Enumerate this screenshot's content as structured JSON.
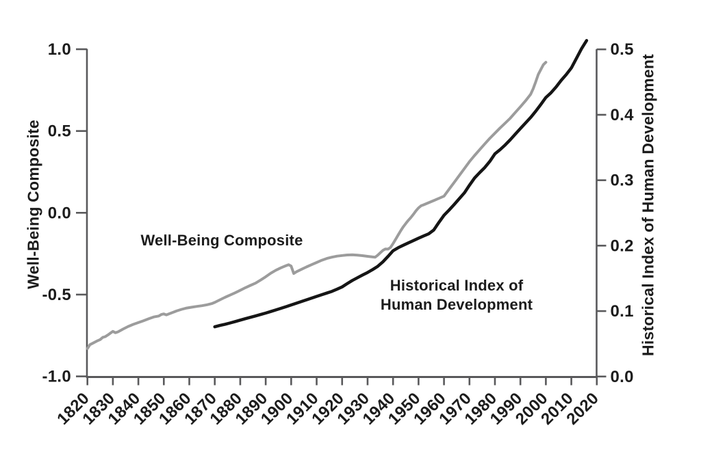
{
  "chart_data": {
    "type": "line",
    "title": "",
    "grid": false,
    "legend": "inline-annotations",
    "x_axis": {
      "min": 1820,
      "max": 2020,
      "tick_step": 10,
      "ticks": [
        {
          "value": 1820,
          "label": "1820"
        },
        {
          "value": 1830,
          "label": "1830"
        },
        {
          "value": 1840,
          "label": "1840"
        },
        {
          "value": 1850,
          "label": "1850"
        },
        {
          "value": 1860,
          "label": "1860"
        },
        {
          "value": 1870,
          "label": "1870"
        },
        {
          "value": 1880,
          "label": "1880"
        },
        {
          "value": 1890,
          "label": "1890"
        },
        {
          "value": 1900,
          "label": "1900"
        },
        {
          "value": 1910,
          "label": "1910"
        },
        {
          "value": 1920,
          "label": "1920"
        },
        {
          "value": 1930,
          "label": "1930"
        },
        {
          "value": 1940,
          "label": "1940"
        },
        {
          "value": 1950,
          "label": "1950"
        },
        {
          "value": 1960,
          "label": "1960"
        },
        {
          "value": 1970,
          "label": "1970"
        },
        {
          "value": 1980,
          "label": "1980"
        },
        {
          "value": 1990,
          "label": "1990"
        },
        {
          "value": 2000,
          "label": "2000"
        },
        {
          "value": 2010,
          "label": "2010"
        },
        {
          "value": 2020,
          "label": "2020"
        }
      ]
    },
    "left_axis": {
      "title": "Well-Being Composite",
      "min": -1.0,
      "max": 1.0,
      "ticks": [
        {
          "value": 1.0,
          "label": "1.0"
        },
        {
          "value": 0.5,
          "label": "0.5"
        },
        {
          "value": 0.0,
          "label": "0.0"
        },
        {
          "value": -0.5,
          "label": "-0.5"
        },
        {
          "value": -1.0,
          "label": "-1.0"
        }
      ]
    },
    "right_axis": {
      "title": "Historical Index of Human Development",
      "min": 0.0,
      "max": 0.5,
      "ticks": [
        {
          "value": 0.5,
          "label": "0.5"
        },
        {
          "value": 0.4,
          "label": "0.4"
        },
        {
          "value": 0.3,
          "label": "0.3"
        },
        {
          "value": 0.2,
          "label": "0.2"
        },
        {
          "value": 0.1,
          "label": "0.1"
        },
        {
          "value": 0.0,
          "label": "0.0"
        }
      ]
    },
    "series": [
      {
        "name": "Well-Being Composite",
        "axis": "left",
        "color": "#9c9c9c",
        "stroke_width": 4,
        "points": [
          [
            1820,
            -0.83
          ],
          [
            1821,
            -0.806
          ],
          [
            1822,
            -0.798
          ],
          [
            1824,
            -0.782
          ],
          [
            1825,
            -0.775
          ],
          [
            1826,
            -0.762
          ],
          [
            1827,
            -0.757
          ],
          [
            1828,
            -0.747
          ],
          [
            1829,
            -0.736
          ],
          [
            1830,
            -0.725
          ],
          [
            1831,
            -0.733
          ],
          [
            1832,
            -0.728
          ],
          [
            1834,
            -0.711
          ],
          [
            1836,
            -0.695
          ],
          [
            1838,
            -0.682
          ],
          [
            1840,
            -0.671
          ],
          [
            1842,
            -0.66
          ],
          [
            1844,
            -0.648
          ],
          [
            1846,
            -0.637
          ],
          [
            1848,
            -0.631
          ],
          [
            1849,
            -0.622
          ],
          [
            1850,
            -0.618
          ],
          [
            1851,
            -0.624
          ],
          [
            1853,
            -0.612
          ],
          [
            1855,
            -0.6
          ],
          [
            1857,
            -0.59
          ],
          [
            1859,
            -0.582
          ],
          [
            1861,
            -0.577
          ],
          [
            1863,
            -0.572
          ],
          [
            1865,
            -0.568
          ],
          [
            1867,
            -0.562
          ],
          [
            1869,
            -0.554
          ],
          [
            1870,
            -0.548
          ],
          [
            1872,
            -0.532
          ],
          [
            1874,
            -0.517
          ],
          [
            1876,
            -0.503
          ],
          [
            1878,
            -0.489
          ],
          [
            1880,
            -0.474
          ],
          [
            1882,
            -0.458
          ],
          [
            1884,
            -0.444
          ],
          [
            1886,
            -0.43
          ],
          [
            1888,
            -0.411
          ],
          [
            1890,
            -0.391
          ],
          [
            1892,
            -0.369
          ],
          [
            1894,
            -0.351
          ],
          [
            1896,
            -0.336
          ],
          [
            1898,
            -0.323
          ],
          [
            1899,
            -0.317
          ],
          [
            1900,
            -0.326
          ],
          [
            1901,
            -0.371
          ],
          [
            1902,
            -0.361
          ],
          [
            1904,
            -0.346
          ],
          [
            1906,
            -0.331
          ],
          [
            1908,
            -0.317
          ],
          [
            1910,
            -0.304
          ],
          [
            1912,
            -0.29
          ],
          [
            1914,
            -0.279
          ],
          [
            1916,
            -0.271
          ],
          [
            1918,
            -0.265
          ],
          [
            1920,
            -0.261
          ],
          [
            1922,
            -0.258
          ],
          [
            1924,
            -0.257
          ],
          [
            1926,
            -0.259
          ],
          [
            1928,
            -0.262
          ],
          [
            1930,
            -0.266
          ],
          [
            1932,
            -0.27
          ],
          [
            1933,
            -0.271
          ],
          [
            1934,
            -0.259
          ],
          [
            1935,
            -0.244
          ],
          [
            1936,
            -0.23
          ],
          [
            1937,
            -0.221
          ],
          [
            1938,
            -0.222
          ],
          [
            1939,
            -0.212
          ],
          [
            1940,
            -0.188
          ],
          [
            1941,
            -0.162
          ],
          [
            1942,
            -0.136
          ],
          [
            1943,
            -0.11
          ],
          [
            1944,
            -0.086
          ],
          [
            1945,
            -0.065
          ],
          [
            1946,
            -0.046
          ],
          [
            1947,
            -0.029
          ],
          [
            1948,
            -0.009
          ],
          [
            1949,
            0.012
          ],
          [
            1950,
            0.03
          ],
          [
            1951,
            0.043
          ],
          [
            1952,
            0.049
          ],
          [
            1954,
            0.062
          ],
          [
            1956,
            0.075
          ],
          [
            1958,
            0.088
          ],
          [
            1960,
            0.102
          ],
          [
            1962,
            0.144
          ],
          [
            1964,
            0.186
          ],
          [
            1966,
            0.228
          ],
          [
            1968,
            0.27
          ],
          [
            1970,
            0.313
          ],
          [
            1972,
            0.35
          ],
          [
            1974,
            0.386
          ],
          [
            1976,
            0.421
          ],
          [
            1978,
            0.455
          ],
          [
            1980,
            0.487
          ],
          [
            1982,
            0.518
          ],
          [
            1984,
            0.548
          ],
          [
            1986,
            0.578
          ],
          [
            1988,
            0.613
          ],
          [
            1990,
            0.648
          ],
          [
            1992,
            0.684
          ],
          [
            1994,
            0.724
          ],
          [
            1995,
            0.758
          ],
          [
            1996,
            0.8
          ],
          [
            1997,
            0.845
          ],
          [
            1998,
            0.875
          ],
          [
            1999,
            0.905
          ],
          [
            2000,
            0.92
          ]
        ]
      },
      {
        "name": "Historical Index of Human Development",
        "axis": "right",
        "color": "#151515",
        "stroke_width": 4.5,
        "points": [
          [
            1870,
            0.076
          ],
          [
            1872,
            0.078
          ],
          [
            1874,
            0.0798
          ],
          [
            1876,
            0.0818
          ],
          [
            1878,
            0.084
          ],
          [
            1880,
            0.0862
          ],
          [
            1882,
            0.0884
          ],
          [
            1884,
            0.0905
          ],
          [
            1886,
            0.0926
          ],
          [
            1888,
            0.0948
          ],
          [
            1890,
            0.097
          ],
          [
            1892,
            0.0994
          ],
          [
            1894,
            0.1018
          ],
          [
            1896,
            0.1043
          ],
          [
            1898,
            0.1068
          ],
          [
            1900,
            0.1094
          ],
          [
            1902,
            0.112
          ],
          [
            1904,
            0.1146
          ],
          [
            1906,
            0.1172
          ],
          [
            1908,
            0.1198
          ],
          [
            1910,
            0.1224
          ],
          [
            1912,
            0.125
          ],
          [
            1914,
            0.1276
          ],
          [
            1916,
            0.1302
          ],
          [
            1918,
            0.1334
          ],
          [
            1920,
            0.137
          ],
          [
            1922,
            0.142
          ],
          [
            1924,
            0.1468
          ],
          [
            1926,
            0.151
          ],
          [
            1928,
            0.155
          ],
          [
            1930,
            0.159
          ],
          [
            1932,
            0.1635
          ],
          [
            1934,
            0.1684
          ],
          [
            1936,
            0.1752
          ],
          [
            1938,
            0.1834
          ],
          [
            1940,
            0.1922
          ],
          [
            1942,
            0.1968
          ],
          [
            1944,
            0.2006
          ],
          [
            1946,
            0.2042
          ],
          [
            1948,
            0.2078
          ],
          [
            1950,
            0.2114
          ],
          [
            1952,
            0.2148
          ],
          [
            1954,
            0.218
          ],
          [
            1956,
            0.224
          ],
          [
            1958,
            0.2355
          ],
          [
            1960,
            0.2464
          ],
          [
            1962,
            0.2544
          ],
          [
            1964,
            0.263
          ],
          [
            1966,
            0.2718
          ],
          [
            1968,
            0.2806
          ],
          [
            1970,
            0.2924
          ],
          [
            1972,
            0.3034
          ],
          [
            1974,
            0.3116
          ],
          [
            1976,
            0.3194
          ],
          [
            1978,
            0.3288
          ],
          [
            1980,
            0.3404
          ],
          [
            1982,
            0.3466
          ],
          [
            1984,
            0.3538
          ],
          [
            1986,
            0.3618
          ],
          [
            1988,
            0.3704
          ],
          [
            1990,
            0.379
          ],
          [
            1992,
            0.3874
          ],
          [
            1994,
            0.3958
          ],
          [
            1996,
            0.4054
          ],
          [
            1998,
            0.4156
          ],
          [
            2000,
            0.4264
          ],
          [
            2002,
            0.4336
          ],
          [
            2004,
            0.4424
          ],
          [
            2006,
            0.4526
          ],
          [
            2008,
            0.4616
          ],
          [
            2010,
            0.4716
          ],
          [
            2012,
            0.4862
          ],
          [
            2014,
            0.501
          ],
          [
            2016,
            0.5135
          ]
        ]
      }
    ],
    "annotations": {
      "well_being": "Well-Being Composite",
      "hihd_line1": "Historical Index of",
      "hihd_line2": "Human Development"
    },
    "colors": {
      "well_being_line": "#9c9c9c",
      "hihd_line": "#151515",
      "axis": "#59595b",
      "text": "#1c1c1c"
    }
  }
}
